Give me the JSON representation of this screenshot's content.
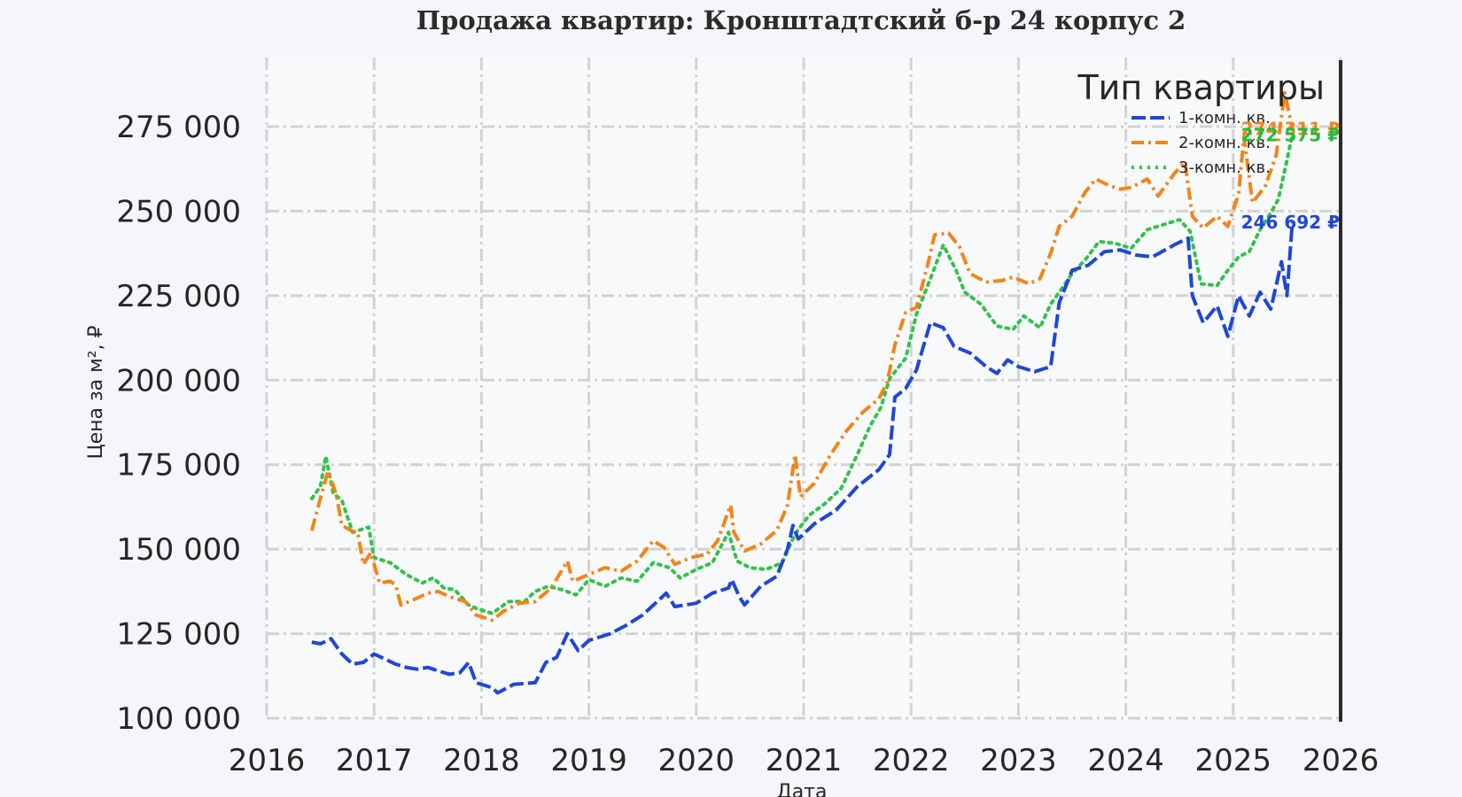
{
  "chart_data": {
    "type": "line",
    "title": "Продажа квартир: Кронштадтский б-р 24 корпус 2",
    "xlabel": "Дата",
    "ylabel": "Цена за м², ₽",
    "xlim": [
      2016,
      2026
    ],
    "ylim": [
      100000,
      290000
    ],
    "x_ticks": [
      "2016",
      "2017",
      "2018",
      "2019",
      "2020",
      "2021",
      "2022",
      "2023",
      "2024",
      "2025",
      "2026"
    ],
    "y_ticks": [
      "100 000",
      "125 000",
      "150 000",
      "175 000",
      "200 000",
      "225 000",
      "250 000",
      "275 000"
    ],
    "y_tick_values": [
      100000,
      125000,
      150000,
      175000,
      200000,
      225000,
      250000,
      275000
    ],
    "grid": true,
    "legend": {
      "title": "Тип квартиры",
      "position": "top-right"
    },
    "end_labels": [
      {
        "text": "274 311 ₽",
        "series": 1,
        "color": "#f28518",
        "value": 274311
      },
      {
        "text": "272 575 ₽",
        "series": 2,
        "color": "#1fbe3c",
        "value": 272575
      },
      {
        "text": "246 692 ₽",
        "series": 0,
        "color": "#1f47d6",
        "value": 246692
      }
    ],
    "series": [
      {
        "name": "1-комн. кв.",
        "color": "#1f47d6",
        "style": "dashed",
        "points": [
          [
            2016.42,
            122500
          ],
          [
            2016.5,
            122000
          ],
          [
            2016.6,
            123500
          ],
          [
            2016.7,
            119000
          ],
          [
            2016.8,
            116000
          ],
          [
            2016.9,
            116500
          ],
          [
            2017.0,
            119000
          ],
          [
            2017.1,
            117500
          ],
          [
            2017.2,
            116000
          ],
          [
            2017.3,
            115000
          ],
          [
            2017.4,
            114500
          ],
          [
            2017.5,
            115000
          ],
          [
            2017.6,
            114000
          ],
          [
            2017.7,
            113000
          ],
          [
            2017.8,
            113500
          ],
          [
            2017.88,
            116500
          ],
          [
            2017.95,
            110500
          ],
          [
            2018.1,
            109000
          ],
          [
            2018.15,
            107500
          ],
          [
            2018.3,
            110000
          ],
          [
            2018.5,
            110500
          ],
          [
            2018.6,
            116500
          ],
          [
            2018.7,
            118000
          ],
          [
            2018.8,
            125000
          ],
          [
            2018.9,
            120000
          ],
          [
            2019.0,
            123000
          ],
          [
            2019.2,
            125000
          ],
          [
            2019.35,
            127500
          ],
          [
            2019.5,
            130500
          ],
          [
            2019.62,
            134000
          ],
          [
            2019.72,
            137000
          ],
          [
            2019.8,
            133000
          ],
          [
            2020.0,
            134000
          ],
          [
            2020.15,
            137000
          ],
          [
            2020.3,
            138500
          ],
          [
            2020.33,
            141000
          ],
          [
            2020.4,
            136000
          ],
          [
            2020.45,
            133500
          ],
          [
            2020.6,
            139000
          ],
          [
            2020.75,
            142000
          ],
          [
            2020.85,
            150000
          ],
          [
            2020.9,
            157000
          ],
          [
            2020.95,
            153000
          ],
          [
            2021.1,
            157500
          ],
          [
            2021.3,
            161500
          ],
          [
            2021.5,
            168500
          ],
          [
            2021.7,
            173500
          ],
          [
            2021.8,
            178000
          ],
          [
            2021.85,
            195000
          ],
          [
            2021.95,
            197500
          ],
          [
            2022.05,
            203000
          ],
          [
            2022.18,
            217000
          ],
          [
            2022.3,
            215500
          ],
          [
            2022.4,
            210000
          ],
          [
            2022.55,
            208000
          ],
          [
            2022.7,
            204000
          ],
          [
            2022.8,
            202000
          ],
          [
            2022.9,
            206000
          ],
          [
            2023.0,
            204000
          ],
          [
            2023.15,
            202500
          ],
          [
            2023.3,
            204000
          ],
          [
            2023.38,
            223000
          ],
          [
            2023.5,
            232500
          ],
          [
            2023.65,
            234000
          ],
          [
            2023.8,
            238000
          ],
          [
            2023.95,
            238500
          ],
          [
            2024.1,
            237000
          ],
          [
            2024.25,
            236500
          ],
          [
            2024.45,
            240000
          ],
          [
            2024.58,
            242000
          ],
          [
            2024.62,
            225000
          ],
          [
            2024.72,
            217000
          ],
          [
            2024.85,
            222000
          ],
          [
            2024.95,
            213000
          ],
          [
            2025.05,
            225000
          ],
          [
            2025.15,
            219000
          ],
          [
            2025.25,
            226000
          ],
          [
            2025.35,
            221000
          ],
          [
            2025.45,
            235000
          ],
          [
            2025.5,
            225000
          ],
          [
            2025.55,
            246692
          ]
        ]
      },
      {
        "name": "2-комн. кв.",
        "color": "#f28518",
        "style": "dashdot",
        "points": [
          [
            2016.42,
            155500
          ],
          [
            2016.5,
            165000
          ],
          [
            2016.57,
            173000
          ],
          [
            2016.65,
            166000
          ],
          [
            2016.7,
            157000
          ],
          [
            2016.85,
            154500
          ],
          [
            2016.9,
            145500
          ],
          [
            2016.97,
            149000
          ],
          [
            2017.05,
            140000
          ],
          [
            2017.15,
            140500
          ],
          [
            2017.2,
            139500
          ],
          [
            2017.25,
            133500
          ],
          [
            2017.4,
            135500
          ],
          [
            2017.5,
            137000
          ],
          [
            2017.6,
            137500
          ],
          [
            2017.7,
            136000
          ],
          [
            2017.85,
            134500
          ],
          [
            2017.95,
            130500
          ],
          [
            2018.1,
            129000
          ],
          [
            2018.2,
            131500
          ],
          [
            2018.35,
            134000
          ],
          [
            2018.5,
            134500
          ],
          [
            2018.65,
            138500
          ],
          [
            2018.8,
            146500
          ],
          [
            2018.85,
            140500
          ],
          [
            2019.0,
            142500
          ],
          [
            2019.15,
            144500
          ],
          [
            2019.3,
            143500
          ],
          [
            2019.45,
            146500
          ],
          [
            2019.6,
            152500
          ],
          [
            2019.7,
            150500
          ],
          [
            2019.8,
            145500
          ],
          [
            2019.95,
            147500
          ],
          [
            2020.1,
            148500
          ],
          [
            2020.2,
            152500
          ],
          [
            2020.32,
            163000
          ],
          [
            2020.35,
            155000
          ],
          [
            2020.45,
            149500
          ],
          [
            2020.6,
            151500
          ],
          [
            2020.75,
            155500
          ],
          [
            2020.85,
            163000
          ],
          [
            2020.92,
            178000
          ],
          [
            2020.97,
            165500
          ],
          [
            2021.1,
            169500
          ],
          [
            2021.25,
            178000
          ],
          [
            2021.4,
            185000
          ],
          [
            2021.55,
            190500
          ],
          [
            2021.7,
            194500
          ],
          [
            2021.78,
            199500
          ],
          [
            2021.85,
            210500
          ],
          [
            2021.95,
            220000
          ],
          [
            2022.05,
            221500
          ],
          [
            2022.15,
            233500
          ],
          [
            2022.22,
            243000
          ],
          [
            2022.35,
            243500
          ],
          [
            2022.45,
            239500
          ],
          [
            2022.55,
            231500
          ],
          [
            2022.7,
            229000
          ],
          [
            2022.85,
            229500
          ],
          [
            2022.95,
            230500
          ],
          [
            2023.1,
            228500
          ],
          [
            2023.2,
            230000
          ],
          [
            2023.3,
            237500
          ],
          [
            2023.38,
            245500
          ],
          [
            2023.5,
            248500
          ],
          [
            2023.62,
            255500
          ],
          [
            2023.72,
            259500
          ],
          [
            2023.85,
            257500
          ],
          [
            2023.95,
            256500
          ],
          [
            2024.05,
            257000
          ],
          [
            2024.2,
            259500
          ],
          [
            2024.3,
            254500
          ],
          [
            2024.45,
            261000
          ],
          [
            2024.55,
            264500
          ],
          [
            2024.62,
            248500
          ],
          [
            2024.72,
            245000
          ],
          [
            2024.85,
            248500
          ],
          [
            2024.95,
            245500
          ],
          [
            2025.05,
            255000
          ],
          [
            2025.1,
            272000
          ],
          [
            2025.18,
            252500
          ],
          [
            2025.3,
            257500
          ],
          [
            2025.4,
            266500
          ],
          [
            2025.48,
            285000
          ],
          [
            2025.55,
            274311
          ]
        ]
      },
      {
        "name": "3-комн. кв.",
        "color": "#33c24d",
        "style": "dotted",
        "points": [
          [
            2016.42,
            165000
          ],
          [
            2016.5,
            168500
          ],
          [
            2016.55,
            177500
          ],
          [
            2016.62,
            166500
          ],
          [
            2016.7,
            164500
          ],
          [
            2016.8,
            155000
          ],
          [
            2016.95,
            156500
          ],
          [
            2017.0,
            147500
          ],
          [
            2017.15,
            146000
          ],
          [
            2017.3,
            142500
          ],
          [
            2017.45,
            140000
          ],
          [
            2017.55,
            141500
          ],
          [
            2017.65,
            138500
          ],
          [
            2017.75,
            138000
          ],
          [
            2017.88,
            133500
          ],
          [
            2017.95,
            132500
          ],
          [
            2018.1,
            131000
          ],
          [
            2018.25,
            134500
          ],
          [
            2018.4,
            134500
          ],
          [
            2018.5,
            137500
          ],
          [
            2018.62,
            139000
          ],
          [
            2018.75,
            138000
          ],
          [
            2018.88,
            136500
          ],
          [
            2019.0,
            141000
          ],
          [
            2019.15,
            139000
          ],
          [
            2019.3,
            141500
          ],
          [
            2019.45,
            140500
          ],
          [
            2019.6,
            146000
          ],
          [
            2019.75,
            144500
          ],
          [
            2019.85,
            141500
          ],
          [
            2020.0,
            144000
          ],
          [
            2020.15,
            146000
          ],
          [
            2020.3,
            155000
          ],
          [
            2020.38,
            146500
          ],
          [
            2020.5,
            144500
          ],
          [
            2020.65,
            144000
          ],
          [
            2020.8,
            146000
          ],
          [
            2020.92,
            154500
          ],
          [
            2021.05,
            160000
          ],
          [
            2021.2,
            163500
          ],
          [
            2021.35,
            168000
          ],
          [
            2021.5,
            178000
          ],
          [
            2021.62,
            186500
          ],
          [
            2021.72,
            192000
          ],
          [
            2021.8,
            200500
          ],
          [
            2021.95,
            206500
          ],
          [
            2022.05,
            219500
          ],
          [
            2022.18,
            230000
          ],
          [
            2022.3,
            240000
          ],
          [
            2022.42,
            232500
          ],
          [
            2022.5,
            226000
          ],
          [
            2022.65,
            222500
          ],
          [
            2022.8,
            216000
          ],
          [
            2022.95,
            215000
          ],
          [
            2023.05,
            219000
          ],
          [
            2023.2,
            215500
          ],
          [
            2023.3,
            222500
          ],
          [
            2023.38,
            226000
          ],
          [
            2023.5,
            231500
          ],
          [
            2023.62,
            235500
          ],
          [
            2023.75,
            241000
          ],
          [
            2023.9,
            240500
          ],
          [
            2024.05,
            239000
          ],
          [
            2024.2,
            244500
          ],
          [
            2024.35,
            246000
          ],
          [
            2024.5,
            247500
          ],
          [
            2024.6,
            244000
          ],
          [
            2024.7,
            228500
          ],
          [
            2024.85,
            228000
          ],
          [
            2024.95,
            232500
          ],
          [
            2025.05,
            236500
          ],
          [
            2025.15,
            238000
          ],
          [
            2025.25,
            244500
          ],
          [
            2025.35,
            249500
          ],
          [
            2025.42,
            253500
          ],
          [
            2025.5,
            265000
          ],
          [
            2025.55,
            272575
          ]
        ]
      }
    ]
  }
}
